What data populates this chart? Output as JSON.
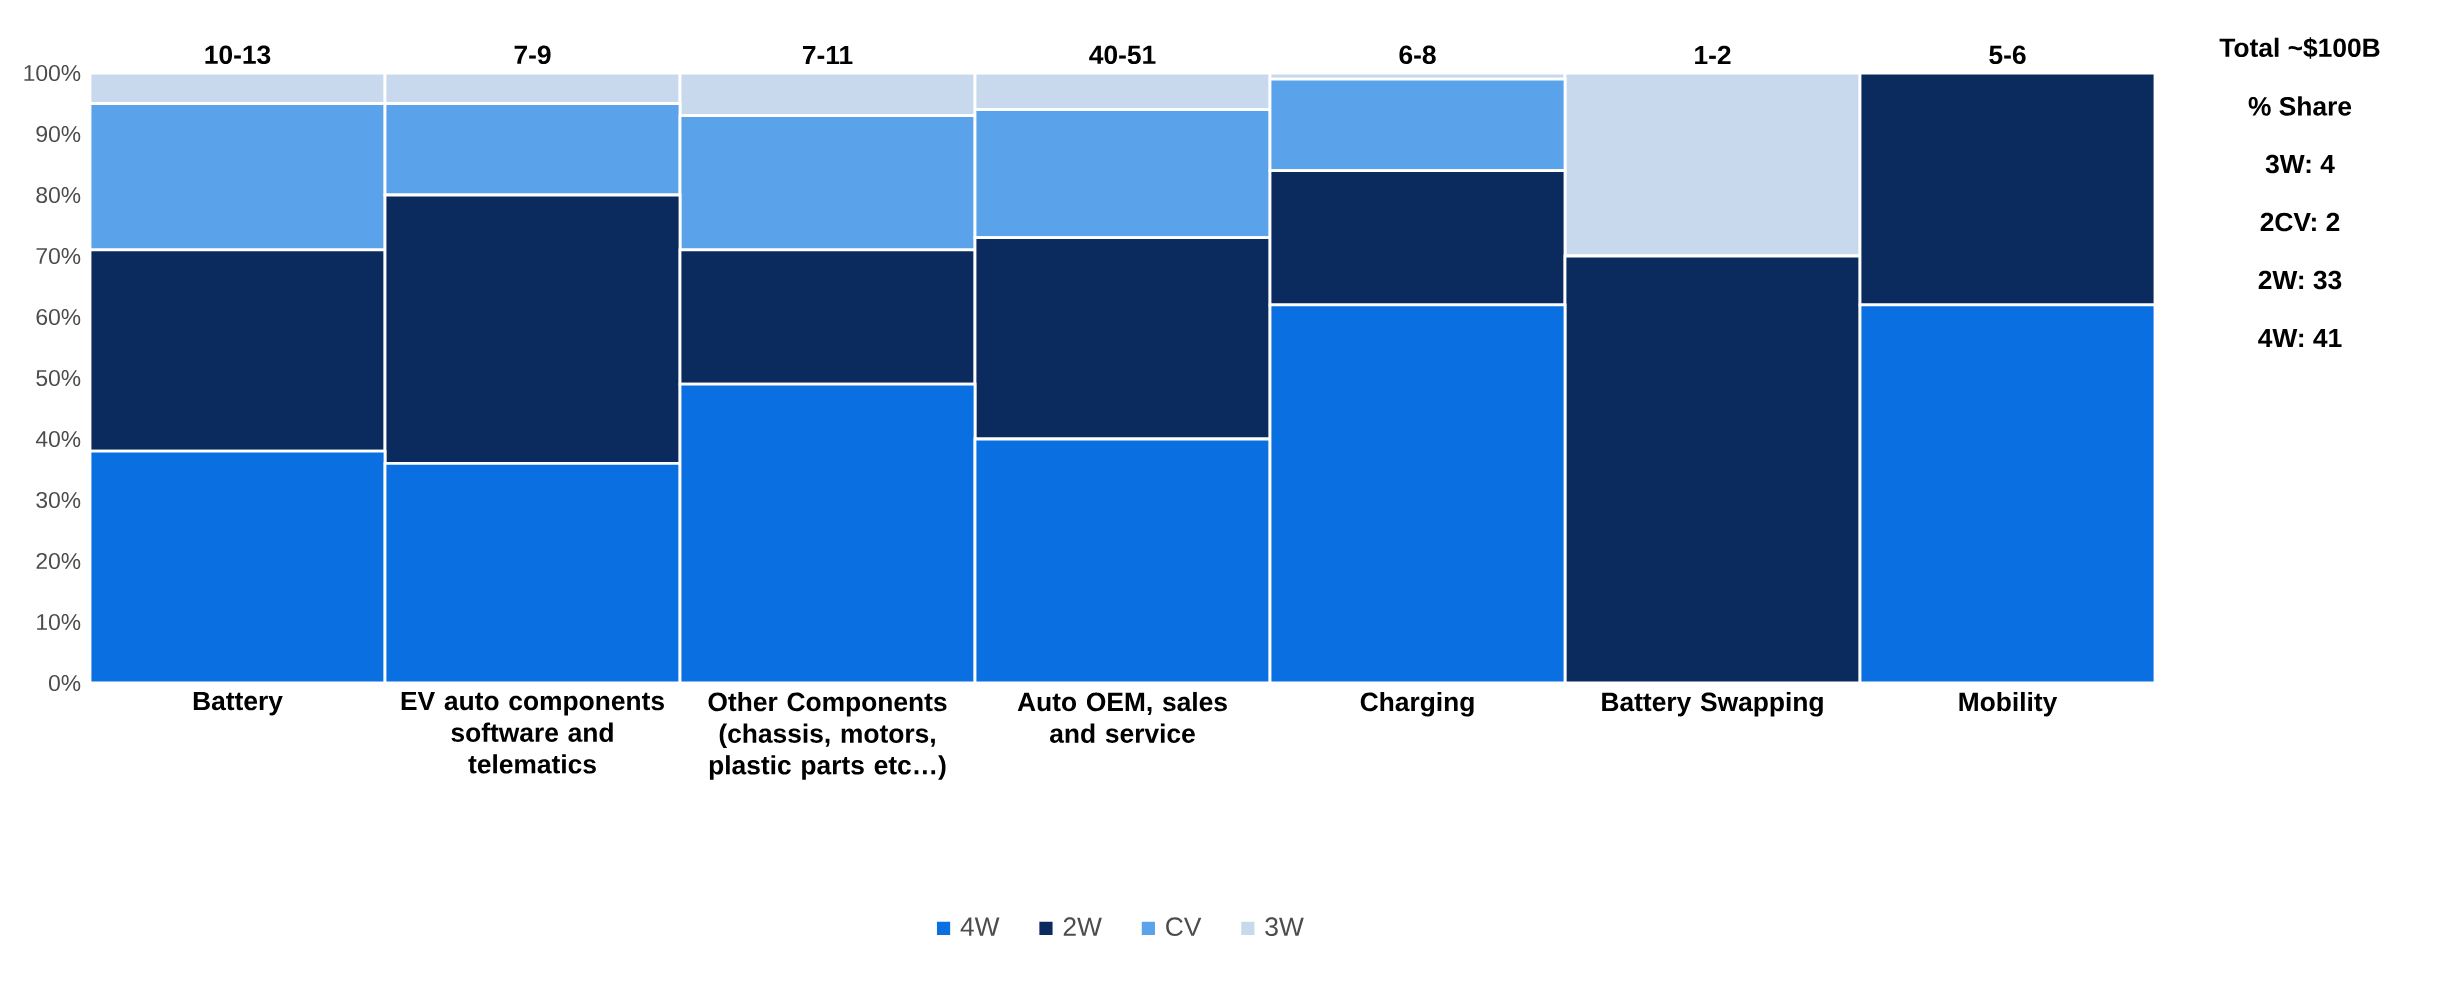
{
  "chart_data": {
    "type": "bar",
    "stacked": true,
    "legend": "bottom",
    "categories": [
      "Battery",
      "EV auto components software and telematics",
      "Other Components (chassis, motors, plastic parts etc…)",
      "Auto OEM, sales and service",
      "Charging",
      "Battery Swapping",
      "Mobility"
    ],
    "series": [
      {
        "name": "4W",
        "color": "#0a6fe0",
        "values": [
          38,
          36,
          49,
          40,
          62,
          0,
          62
        ]
      },
      {
        "name": "2W",
        "color": "#0b2a5e",
        "values": [
          33,
          44,
          22,
          33,
          22,
          70,
          38
        ]
      },
      {
        "name": "CV",
        "color": "#5aa2ea",
        "values": [
          24,
          15,
          22,
          21,
          15,
          0,
          0
        ]
      },
      {
        "name": "3W",
        "color": "#c8d9ee",
        "values": [
          5,
          5,
          7,
          6,
          1,
          30,
          0
        ]
      }
    ],
    "ylim": [
      0,
      100
    ],
    "yticks": [
      {
        "value": 0,
        "label": "0%"
      },
      {
        "value": 10,
        "label": "10%"
      },
      {
        "value": 20,
        "label": "20%"
      },
      {
        "value": 30,
        "label": "30%"
      },
      {
        "value": 40,
        "label": "40%"
      },
      {
        "value": 50,
        "label": "50%"
      },
      {
        "value": 60,
        "label": "60%"
      },
      {
        "value": 70,
        "label": "70%"
      },
      {
        "value": 80,
        "label": "80%"
      },
      {
        "value": 90,
        "label": "90%"
      },
      {
        "value": 100,
        "label": "100%"
      }
    ],
    "totals": [
      "10-13",
      "7-9",
      "7-11",
      "40-51",
      "6-8",
      "1-2",
      "5-6"
    ],
    "annotations": [
      "Total ~$100B",
      "% Share",
      "3W: 4",
      "2CV: 2",
      "2W: 33",
      "4W: 41"
    ]
  }
}
